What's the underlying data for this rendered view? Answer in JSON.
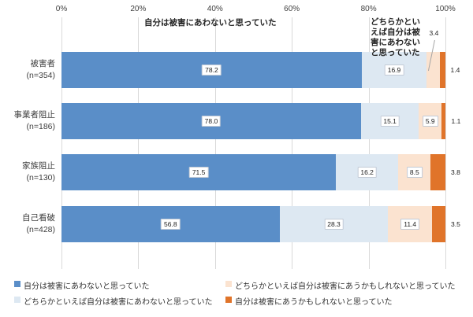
{
  "chart_data": {
    "type": "bar",
    "orientation": "horizontal",
    "stacked": true,
    "title": "",
    "x_axis": {
      "tick_labels": [
        "0%",
        "20%",
        "40%",
        "60%",
        "80%",
        "100%"
      ],
      "min": 0,
      "max": 100,
      "grid": true,
      "grid_color": "#d9d9d9"
    },
    "categories": [
      "被害者",
      "事業者阻止",
      "家族阻止",
      "自己看破"
    ],
    "category_sublabels": [
      "(n=354)",
      "(n=186)",
      "(n=130)",
      "(n=428)"
    ],
    "series": [
      {
        "name": "自分は被害にあわないと思っていた",
        "color": "#5a8ec8",
        "values": [
          78.2,
          78.0,
          71.5,
          56.8
        ],
        "labels": [
          "78.2",
          "78.0",
          "71.5",
          "56.8"
        ],
        "label_placement": [
          "inside",
          "inside",
          "inside",
          "inside"
        ]
      },
      {
        "name": "どちらかといえば自分は被害にあわないと思っていた",
        "color": "#dde8f2",
        "values": [
          16.9,
          15.1,
          16.2,
          28.3
        ],
        "labels": [
          "16.9",
          "15.1",
          "16.2",
          "28.3"
        ],
        "label_placement": [
          "inside",
          "inside",
          "inside",
          "inside"
        ]
      },
      {
        "name": "どちらかといえば自分は被害にあうかもしれないと思っていた",
        "color": "#fbe3d0",
        "values": [
          3.4,
          5.9,
          8.5,
          11.4
        ],
        "labels": [
          "3.4",
          "5.9",
          "8.5",
          "11.4"
        ],
        "label_placement": [
          "callout",
          "inside",
          "inside",
          "inside"
        ]
      },
      {
        "name": "自分は被害にあうかもしれないと思っていた",
        "color": "#e0742a",
        "values": [
          1.4,
          1.1,
          3.8,
          3.5
        ],
        "labels": [
          "1.4",
          "1.1",
          "3.8",
          "3.5"
        ],
        "label_placement": [
          "outside",
          "outside",
          "outside",
          "outside"
        ]
      }
    ],
    "annotations": [
      {
        "text": "自分は被害にあわないと思っていた"
      },
      {
        "text": "どちらかといえば自分は被害にあわないと思っていた"
      }
    ],
    "legend": {
      "position": "bottom",
      "items_display_order": [
        {
          "label": "自分は被害にあわないと思っていた",
          "color": "#5a8ec8"
        },
        {
          "label": "どちらかといえば自分は被害にあうかもしれないと思っていた",
          "color": "#fbe3d0"
        },
        {
          "label": "どちらかといえば自分は被害にあわないと思っていた",
          "color": "#dde8f2"
        },
        {
          "label": "自分は被害にあうかもしれないと思っていた",
          "color": "#e0742a"
        }
      ]
    }
  }
}
